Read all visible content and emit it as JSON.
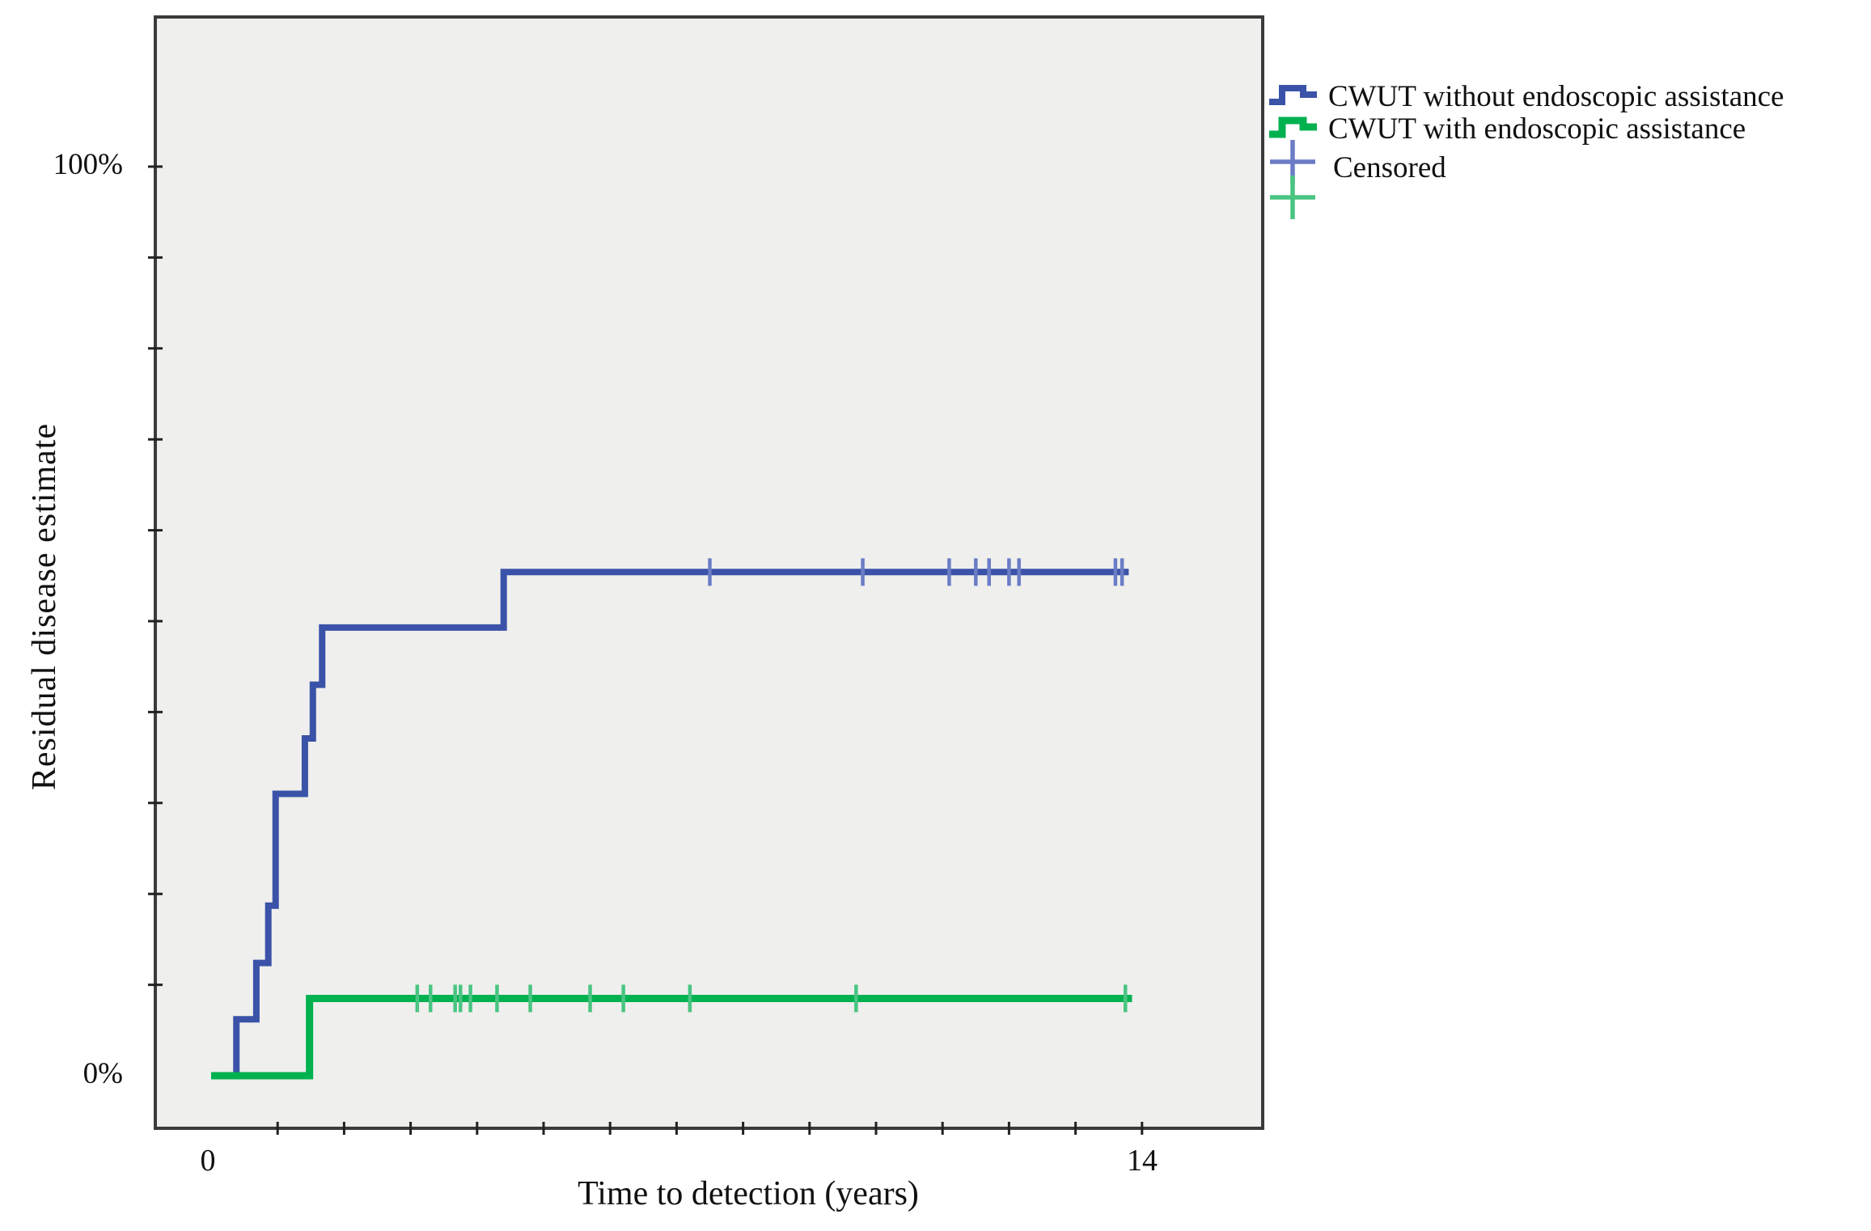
{
  "figure": {
    "background": "#ffffff",
    "plot_background": "#efefed",
    "frame_color": "#3b3b3b",
    "tick_color": "#222222"
  },
  "chart_data": {
    "type": "line",
    "subtype": "kaplan-meier-step",
    "title": "",
    "xlabel": "Time to detection (years)",
    "ylabel": "Residual disease estimate",
    "xlim_years": [
      0,
      14
    ],
    "ylim_percent": [
      0,
      100
    ],
    "x_tick_interval_years": 1,
    "y_tick_interval_percent": 10,
    "grid": "off",
    "x_tick_labels": [
      {
        "text": "0",
        "t": 0
      },
      {
        "text": "14",
        "t": 14
      }
    ],
    "y_tick_labels": [
      {
        "text": "100%",
        "pct": 100
      },
      {
        "text": "0%",
        "pct": 0
      }
    ],
    "series": [
      {
        "name": "CWUT without endoscopic assistance",
        "color": "#3a52a8",
        "censor_color": "#6b7cc6",
        "line_width": 8,
        "steps_t_pct": [
          [
            0,
            0
          ],
          [
            0.38,
            6.2
          ],
          [
            0.68,
            12.4
          ],
          [
            0.86,
            18.7
          ],
          [
            0.97,
            31.0
          ],
          [
            1.41,
            37.1
          ],
          [
            1.53,
            43.0
          ],
          [
            1.67,
            49.3
          ],
          [
            4.4,
            55.4
          ]
        ],
        "end_t": 13.8,
        "censored_t": [
          7.5,
          9.8,
          11.1,
          11.5,
          11.7,
          12.0,
          12.15,
          13.6,
          13.7
        ]
      },
      {
        "name": "CWUT with endoscopic assistance",
        "color": "#00b150",
        "censor_color": "#49c581",
        "line_width": 9,
        "steps_t_pct": [
          [
            0,
            0
          ],
          [
            1.48,
            8.5
          ]
        ],
        "end_t": 13.85,
        "censored_t": [
          3.1,
          3.3,
          3.67,
          3.75,
          3.9,
          4.3,
          4.8,
          5.7,
          6.2,
          7.2,
          9.7,
          13.75
        ]
      }
    ],
    "legend": {
      "position": "top-right-outside",
      "items": [
        {
          "label": "CWUT without endoscopic assistance",
          "symbol": "step-line"
        },
        {
          "label": "CWUT with endoscopic assistance",
          "symbol": "step-line"
        },
        {
          "label": "Censored",
          "symbol": "plus-marks"
        }
      ]
    }
  }
}
